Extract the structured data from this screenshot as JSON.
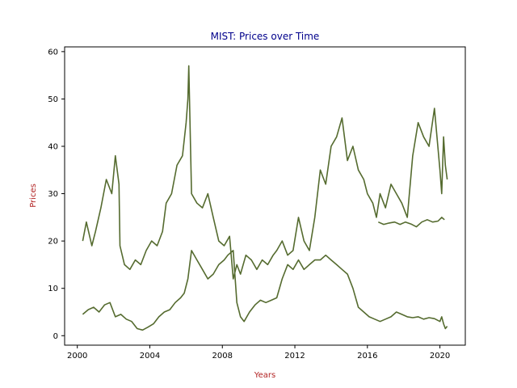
{
  "chart_data": {
    "type": "line",
    "title": "MIST: Prices over Time",
    "xlabel": "Years",
    "ylabel": "Prices",
    "xlim": [
      1999.3,
      2021.4
    ],
    "ylim": [
      -2,
      61
    ],
    "x_ticks": [
      2000,
      2004,
      2008,
      2012,
      2016,
      2020
    ],
    "y_ticks": [
      0,
      10,
      20,
      30,
      40,
      50,
      60
    ],
    "grid": false,
    "legend": "none",
    "colors": {
      "title": "#00008b",
      "axis_labels": "#b22222",
      "line": "#556b2f"
    },
    "series": [
      {
        "x": [
          2000.3,
          2000.5,
          2000.8,
          2001.0,
          2001.3,
          2001.6,
          2001.9,
          2002.1,
          2002.3,
          2002.35,
          2002.6,
          2002.9,
          2003.2,
          2003.5,
          2003.8,
          2004.1,
          2004.4,
          2004.7,
          2004.9,
          2005.2,
          2005.5,
          2005.8,
          2006.0,
          2006.1,
          2006.15,
          2006.3,
          2006.6,
          2006.9,
          2007.2,
          2007.5,
          2007.8,
          2008.1,
          2008.4,
          2008.6,
          2008.8,
          2009.0,
          2009.3,
          2009.6,
          2009.9,
          2010.2,
          2010.5,
          2010.8,
          2011.0,
          2011.3,
          2011.6,
          2011.9,
          2012.2,
          2012.5,
          2012.8,
          2013.1,
          2013.4,
          2013.7,
          2014.0,
          2014.3,
          2014.6,
          2014.9,
          2015.2,
          2015.5,
          2015.8,
          2016.0,
          2016.3,
          2016.5,
          2016.7,
          2017.0,
          2017.3,
          2017.6,
          2017.9,
          2018.2,
          2018.5,
          2018.8,
          2019.1,
          2019.4,
          2019.7,
          2020.0,
          2020.1,
          2020.2,
          2020.3,
          2020.4
        ],
        "y": [
          20,
          24,
          19,
          22,
          27,
          33,
          30,
          38,
          32,
          19,
          15,
          14,
          16,
          15,
          18,
          20,
          19,
          22,
          28,
          30,
          36,
          38,
          45,
          50,
          57,
          30,
          28,
          27,
          30,
          25,
          20,
          19,
          21,
          12,
          15,
          13,
          17,
          16,
          14,
          16,
          15,
          17,
          18,
          20,
          17,
          18,
          25,
          20,
          18,
          25,
          35,
          32,
          40,
          42,
          46,
          37,
          40,
          35,
          33,
          30,
          28,
          25,
          30,
          27,
          32,
          30,
          28,
          25,
          38,
          45,
          42,
          40,
          48,
          35,
          30,
          42,
          36,
          33
        ]
      },
      {
        "x": [
          2000.3,
          2000.6,
          2000.9,
          2001.2,
          2001.5,
          2001.8,
          2002.1,
          2002.4,
          2002.7,
          2003.0,
          2003.3,
          2003.6,
          2003.9,
          2004.2,
          2004.5,
          2004.8,
          2005.1,
          2005.4,
          2005.7,
          2005.9,
          2006.1,
          2006.3,
          2006.6,
          2006.9,
          2007.2,
          2007.5,
          2007.8,
          2008.1,
          2008.3,
          2008.6,
          2008.8,
          2009.0,
          2009.2,
          2009.5,
          2009.8,
          2010.1,
          2010.4,
          2010.7,
          2011.0,
          2011.3,
          2011.6,
          2011.9,
          2012.2,
          2012.5,
          2012.8,
          2013.1,
          2013.4,
          2013.7,
          2014.0,
          2014.3,
          2014.6,
          2014.9,
          2015.2,
          2015.5,
          2015.8,
          2016.1,
          2016.4,
          2016.7,
          2017.0,
          2017.3,
          2017.6,
          2017.9,
          2018.2,
          2018.5,
          2018.8,
          2019.1,
          2019.4,
          2019.7,
          2020.0,
          2020.1,
          2020.2,
          2020.3,
          2020.4
        ],
        "y": [
          4.5,
          5.5,
          6,
          5,
          6.5,
          7,
          4,
          4.5,
          3.5,
          3,
          1.5,
          1.2,
          1.8,
          2.5,
          4,
          5,
          5.5,
          7,
          8,
          9,
          12,
          18,
          16,
          14,
          12,
          13,
          15,
          16,
          17,
          18,
          7,
          4,
          3,
          5,
          6.5,
          7.5,
          7,
          7.5,
          8,
          12,
          15,
          14,
          16,
          14,
          15,
          16,
          16,
          17,
          16,
          15,
          14,
          13,
          10,
          6,
          5,
          4,
          3.5,
          3,
          3.5,
          4,
          5,
          4.5,
          4,
          3.8,
          4,
          3.5,
          3.8,
          3.6,
          3,
          4,
          2.5,
          1.5,
          2
        ]
      },
      {
        "x": [
          2016.6,
          2016.9,
          2017.2,
          2017.5,
          2017.8,
          2018.1,
          2018.4,
          2018.7,
          2019.0,
          2019.3,
          2019.6,
          2019.9,
          2020.1,
          2020.25
        ],
        "y": [
          24,
          23.5,
          23.8,
          24,
          23.5,
          24,
          23.6,
          23,
          24,
          24.5,
          24,
          24.2,
          25,
          24.5
        ]
      }
    ]
  }
}
